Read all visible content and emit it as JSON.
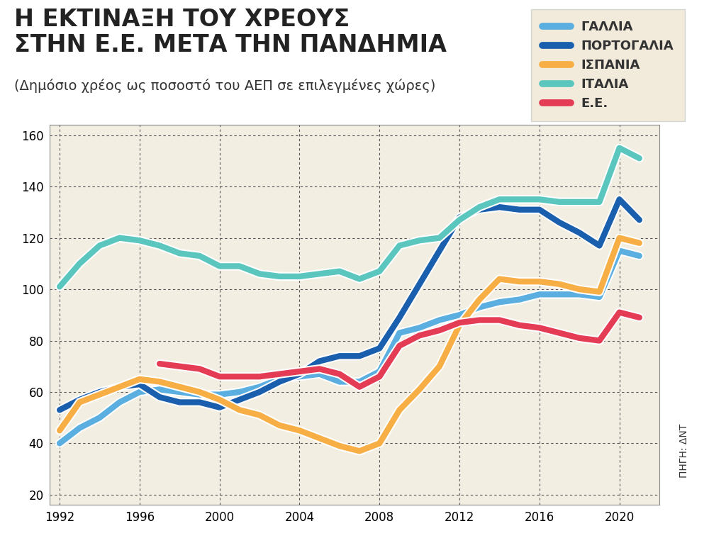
{
  "chart_data": {
    "type": "line",
    "title": "Η ΕΚΤΙΝΑΞΗ ΤΟΥ ΧΡΕΟΥΣ\nΣΤΗΝ Ε.Ε. ΜΕΤΑ ΤΗΝ ΠΑΝΔΗΜΙΑ",
    "subtitle": "(Δημόσιο χρέος ως ποσοστό του ΑΕΠ σε επιλεγμένες χώρες)",
    "source": "ΠΗΓΗ: ΔΝΤ",
    "x": [
      1992,
      1993,
      1994,
      1995,
      1996,
      1997,
      1998,
      1999,
      2000,
      2001,
      2002,
      2003,
      2004,
      2005,
      2006,
      2007,
      2008,
      2009,
      2010,
      2011,
      2012,
      2013,
      2014,
      2015,
      2016,
      2017,
      2018,
      2019,
      2020,
      2021
    ],
    "series": [
      {
        "name": "ΓΑΛΛΙΑ",
        "color": "#5aaee0",
        "values": [
          40,
          46,
          50,
          56,
          60,
          61,
          60,
          59,
          59,
          60,
          62,
          65,
          66,
          67,
          64,
          64,
          68,
          83,
          85,
          88,
          90,
          93,
          95,
          96,
          98,
          98,
          98,
          97,
          115,
          113
        ]
      },
      {
        "name": "ΠΟΡΤΟΓΑΛΙΑ",
        "color": "#1a5fae",
        "values": [
          53,
          57,
          60,
          62,
          63,
          58,
          56,
          56,
          54,
          57,
          60,
          64,
          67,
          72,
          74,
          74,
          77,
          89,
          102,
          115,
          128,
          131,
          132,
          131,
          131,
          126,
          122,
          117,
          135,
          127
        ]
      },
      {
        "name": "ΙΣΠΑΝΙΑ",
        "color": "#f7ae45",
        "values": [
          45,
          56,
          59,
          62,
          65,
          64,
          62,
          60,
          57,
          53,
          51,
          47,
          45,
          42,
          39,
          37,
          40,
          53,
          61,
          70,
          86,
          96,
          104,
          103,
          103,
          102,
          100,
          99,
          120,
          118
        ]
      },
      {
        "name": "ΙΤΑΛΙΑ",
        "color": "#5bc6be",
        "values": [
          101,
          110,
          117,
          120,
          119,
          117,
          114,
          113,
          109,
          109,
          106,
          105,
          105,
          106,
          107,
          104,
          107,
          117,
          119,
          120,
          127,
          132,
          135,
          135,
          135,
          134,
          134,
          134,
          155,
          151
        ]
      },
      {
        "name": "Ε.Ε.",
        "color": "#e43c55",
        "values": [
          null,
          null,
          null,
          null,
          null,
          71,
          70,
          69,
          66,
          66,
          66,
          67,
          68,
          69,
          67,
          62,
          66,
          78,
          82,
          84,
          87,
          88,
          88,
          86,
          85,
          83,
          81,
          80,
          91,
          89
        ]
      }
    ],
    "xlim": [
      1991.5,
      2022
    ],
    "xticks": [
      1992,
      1996,
      2000,
      2004,
      2008,
      2012,
      2016,
      2020
    ],
    "ylim": [
      16,
      164
    ],
    "yticks": [
      20,
      40,
      60,
      80,
      100,
      120,
      140,
      160
    ],
    "grid": true,
    "legend": "upper right"
  }
}
